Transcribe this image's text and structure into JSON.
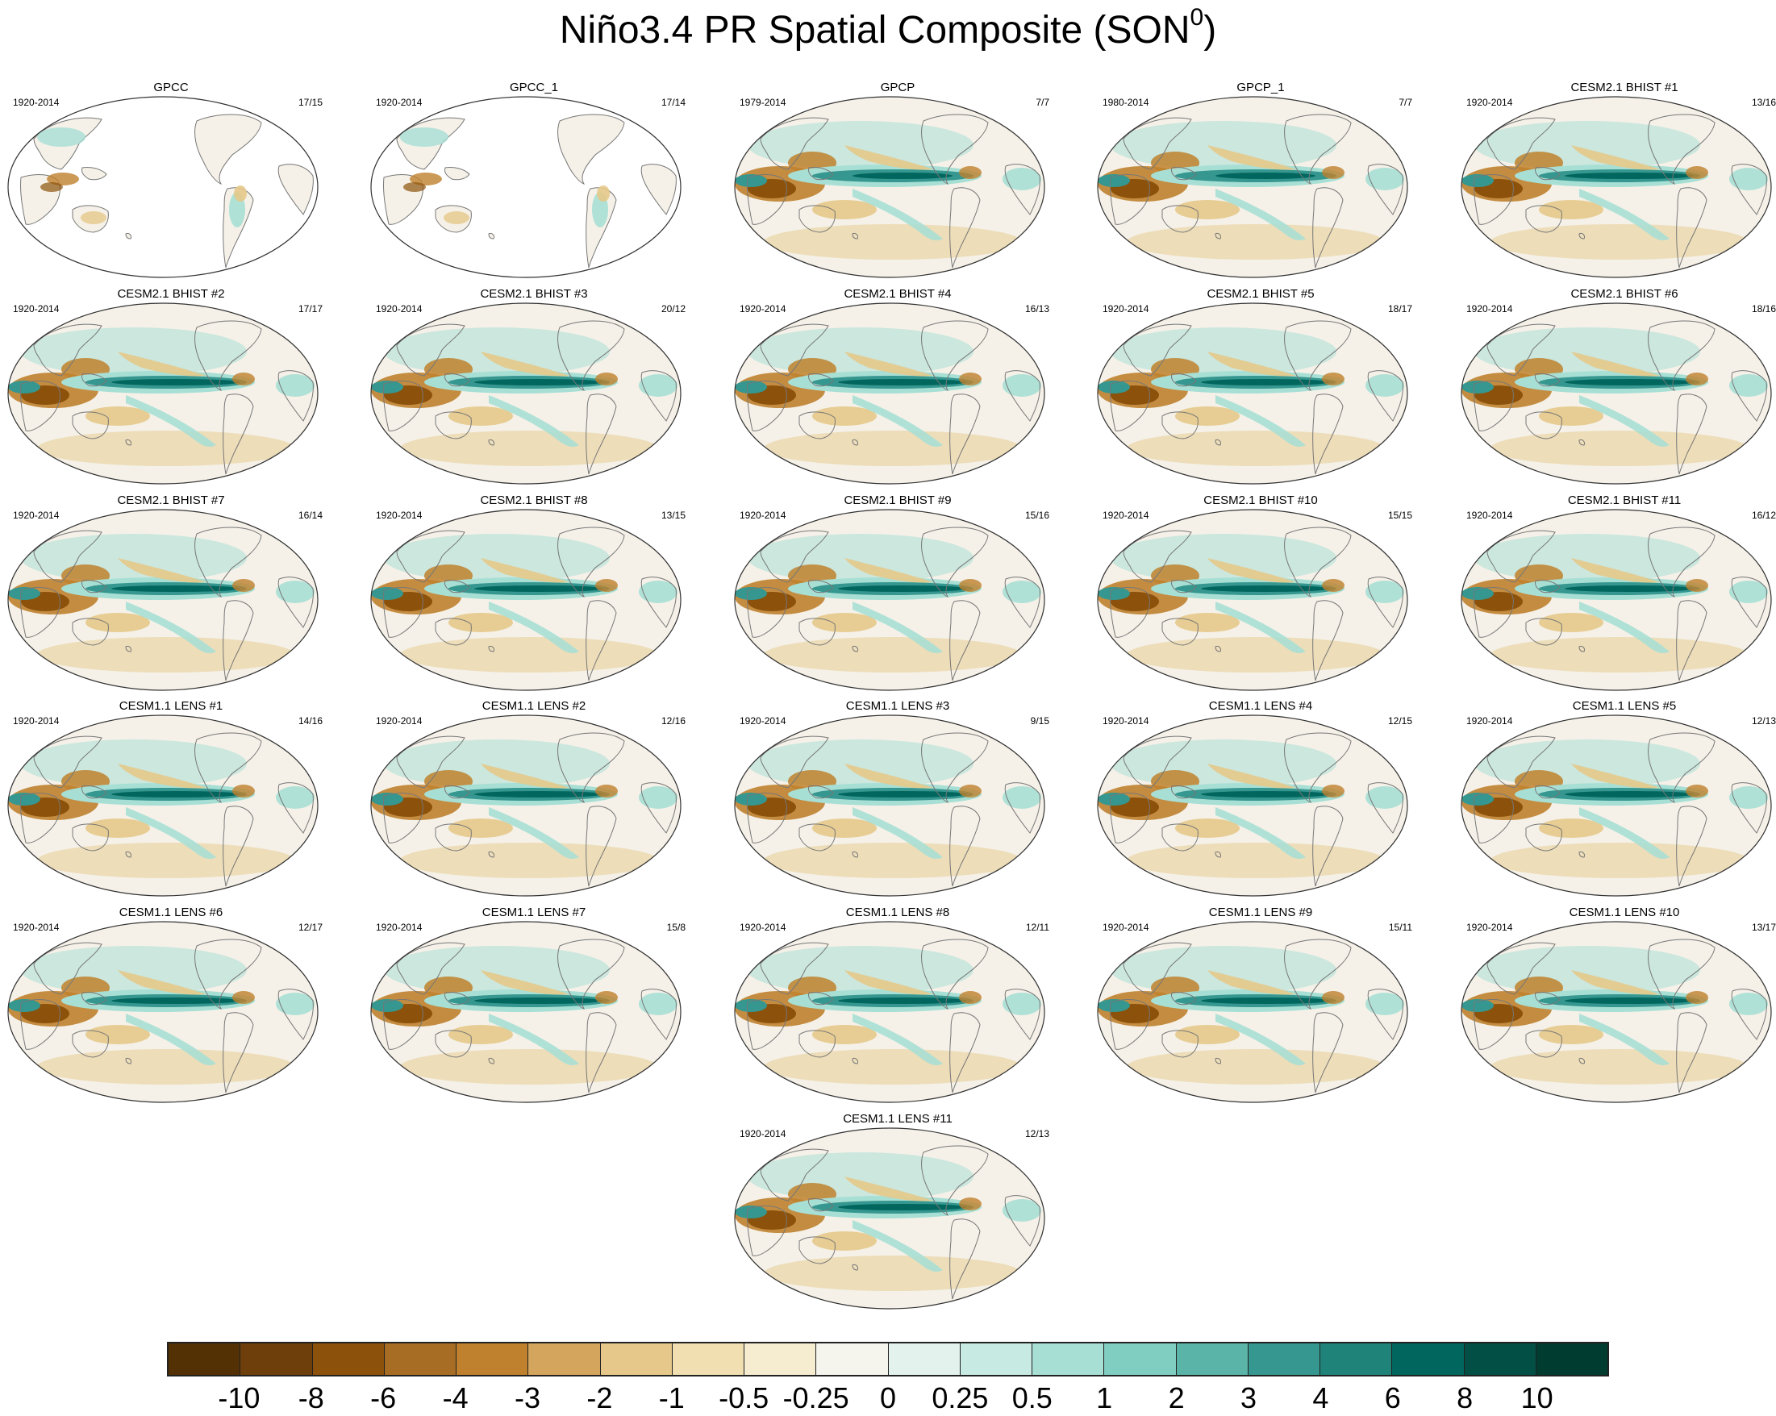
{
  "title": "Niño3.4 PR Spatial Composite (SON",
  "title_superscript": "0",
  "title_close": ")",
  "panels": [
    {
      "name": "GPCC",
      "years": "1920-2014",
      "count": "17/15",
      "style": "obs"
    },
    {
      "name": "GPCC_1",
      "years": "1920-2014",
      "count": "17/14",
      "style": "obs"
    },
    {
      "name": "GPCP",
      "years": "1979-2014",
      "count": "7/7",
      "style": "gpcp"
    },
    {
      "name": "GPCP_1",
      "years": "1980-2014",
      "count": "7/7",
      "style": "gpcp"
    },
    {
      "name": "CESM2.1 BHIST #1",
      "years": "1920-2014",
      "count": "13/16",
      "style": "model"
    },
    {
      "name": "CESM2.1 BHIST #2",
      "years": "1920-2014",
      "count": "17/17",
      "style": "model"
    },
    {
      "name": "CESM2.1 BHIST #3",
      "years": "1920-2014",
      "count": "20/12",
      "style": "model"
    },
    {
      "name": "CESM2.1 BHIST #4",
      "years": "1920-2014",
      "count": "16/13",
      "style": "model"
    },
    {
      "name": "CESM2.1 BHIST #5",
      "years": "1920-2014",
      "count": "18/17",
      "style": "model"
    },
    {
      "name": "CESM2.1 BHIST #6",
      "years": "1920-2014",
      "count": "18/16",
      "style": "model"
    },
    {
      "name": "CESM2.1 BHIST #7",
      "years": "1920-2014",
      "count": "16/14",
      "style": "model"
    },
    {
      "name": "CESM2.1 BHIST #8",
      "years": "1920-2014",
      "count": "13/15",
      "style": "model"
    },
    {
      "name": "CESM2.1 BHIST #9",
      "years": "1920-2014",
      "count": "15/16",
      "style": "model"
    },
    {
      "name": "CESM2.1 BHIST #10",
      "years": "1920-2014",
      "count": "15/15",
      "style": "model"
    },
    {
      "name": "CESM2.1 BHIST #11",
      "years": "1920-2014",
      "count": "16/12",
      "style": "model"
    },
    {
      "name": "CESM1.1 LENS #1",
      "years": "1920-2014",
      "count": "14/16",
      "style": "model"
    },
    {
      "name": "CESM1.1 LENS #2",
      "years": "1920-2014",
      "count": "12/16",
      "style": "model"
    },
    {
      "name": "CESM1.1 LENS #3",
      "years": "1920-2014",
      "count": "9/15",
      "style": "model"
    },
    {
      "name": "CESM1.1 LENS #4",
      "years": "1920-2014",
      "count": "12/15",
      "style": "model"
    },
    {
      "name": "CESM1.1 LENS #5",
      "years": "1920-2014",
      "count": "12/13",
      "style": "model"
    },
    {
      "name": "CESM1.1 LENS #6",
      "years": "1920-2014",
      "count": "12/17",
      "style": "model"
    },
    {
      "name": "CESM1.1 LENS #7",
      "years": "1920-2014",
      "count": "15/8",
      "style": "model"
    },
    {
      "name": "CESM1.1 LENS #8",
      "years": "1920-2014",
      "count": "12/11",
      "style": "model"
    },
    {
      "name": "CESM1.1 LENS #9",
      "years": "1920-2014",
      "count": "15/11",
      "style": "model"
    },
    {
      "name": "CESM1.1 LENS #10",
      "years": "1920-2014",
      "count": "13/17",
      "style": "model"
    },
    {
      "name": "CESM1.1 LENS #11",
      "years": "1920-2014",
      "count": "12/13",
      "style": "model"
    }
  ],
  "colorbar": {
    "colors": [
      "#543005",
      "#6e3f0b",
      "#8c510a",
      "#a86d24",
      "#bf812d",
      "#d4a55d",
      "#e6c98a",
      "#f1dfb2",
      "#f6ecd0",
      "#f5f5ee",
      "#e4f2ee",
      "#c7eae3",
      "#a8dfd5",
      "#80cdc1",
      "#5ab4a8",
      "#35978f",
      "#20837a",
      "#01665e",
      "#014f45",
      "#003c30"
    ],
    "labels": [
      "-10",
      "-8",
      "-6",
      "-4",
      "-3",
      "-2",
      "-1",
      "-0.5",
      "-0.25",
      "0",
      "0.25",
      "0.5",
      "1",
      "2",
      "3",
      "4",
      "6",
      "8",
      "10"
    ]
  },
  "map_colors": {
    "ocean": "#f5f1e8",
    "land": "#ffffff",
    "coast": "#777777",
    "wet_strong": "#01665e",
    "wet_mid": "#35978f",
    "wet_light": "#a8dfd5",
    "dry_strong": "#8c510a",
    "dry_mid": "#bf812d",
    "dry_light": "#e6c98a"
  }
}
